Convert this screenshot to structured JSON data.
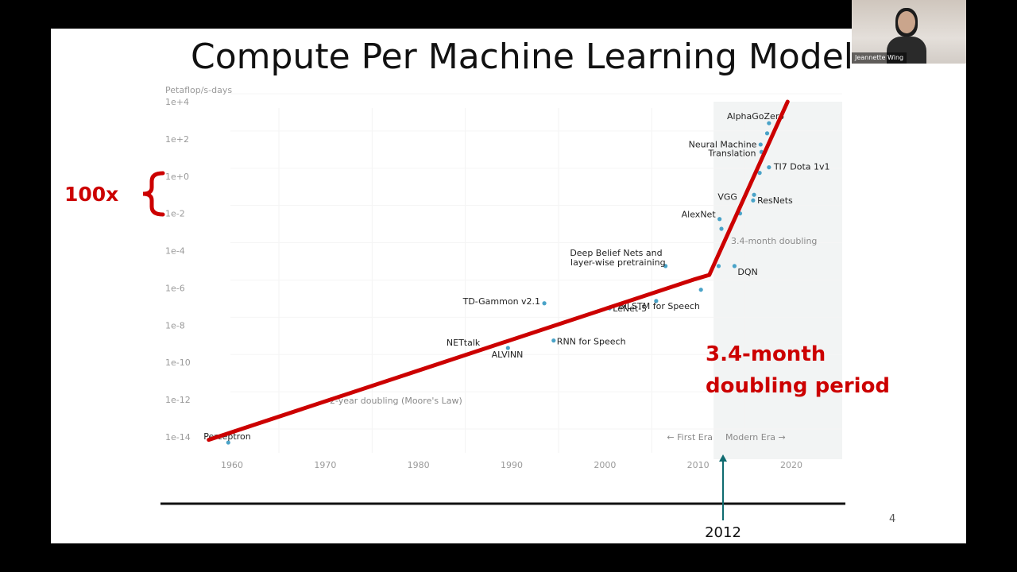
{
  "slide": {
    "title": "Compute Per Machine Learning Model",
    "page_number": "4"
  },
  "video": {
    "participant_name": "Jeannette Wing"
  },
  "annotations": {
    "hundred_x": "100x",
    "doubling_period_line1": "3.4-month",
    "doubling_period_line2": "doubling period",
    "year_2012": "2012",
    "color_red": "#cc0000",
    "color_teal": "#0f6b70"
  },
  "chart_data": {
    "type": "scatter",
    "ylabel": "Petaflop/s-days",
    "y_scale": "log",
    "ylim": [
      1e-14,
      10000.0
    ],
    "xlim": [
      1956,
      2025
    ],
    "x_ticks": [
      1960,
      1970,
      1980,
      1990,
      2000,
      2010,
      2020
    ],
    "y_ticks": [
      {
        "value": 10000.0,
        "label": "1e+4"
      },
      {
        "value": 100.0,
        "label": "1e+2"
      },
      {
        "value": 1.0,
        "label": "1e+0"
      },
      {
        "value": 0.01,
        "label": "1e-2"
      },
      {
        "value": 0.0001,
        "label": "1e-4"
      },
      {
        "value": 1e-06,
        "label": "1e-6"
      },
      {
        "value": 1e-08,
        "label": "1e-8"
      },
      {
        "value": 1e-10,
        "label": "1e-10"
      },
      {
        "value": 1e-12,
        "label": "1e-12"
      },
      {
        "value": 1e-14,
        "label": "1e-14"
      }
    ],
    "grid": true,
    "point_color": "#4aa3c8",
    "points": [
      {
        "x": 1959.6,
        "y": 5e-15
      },
      {
        "x": 1989.6,
        "y": 6e-10
      },
      {
        "x": 1994.5,
        "y": 1.5e-09
      },
      {
        "x": 1993.5,
        "y": 1.5e-07
      },
      {
        "x": 2005.5,
        "y": 2e-07
      },
      {
        "x": 2000.5,
        "y": 8e-08
      },
      {
        "x": 2006.5,
        "y": 1.5e-05
      },
      {
        "x": 2010.3,
        "y": 8e-07
      },
      {
        "x": 2012.2,
        "y": 1.5e-05
      },
      {
        "x": 2013.9,
        "y": 1.5e-05
      },
      {
        "x": 2012.3,
        "y": 0.005
      },
      {
        "x": 2012.5,
        "y": 0.0015
      },
      {
        "x": 2014.5,
        "y": 0.01
      },
      {
        "x": 2015.9,
        "y": 0.05
      },
      {
        "x": 2016.0,
        "y": 0.1
      },
      {
        "x": 2016.6,
        "y": 1.5
      },
      {
        "x": 2017.6,
        "y": 3
      },
      {
        "x": 2016.8,
        "y": 20
      },
      {
        "x": 2016.7,
        "y": 50
      },
      {
        "x": 2017.4,
        "y": 200
      },
      {
        "x": 2017.6,
        "y": 700
      }
    ],
    "point_labels": [
      {
        "text": "Perceptron",
        "x": 1959.6,
        "y": 5e-15
      },
      {
        "text": "NETtalk",
        "x": 1989.6,
        "y": 6e-10
      },
      {
        "text": "ALVINN",
        "x": 1989.6,
        "y": 6e-10
      },
      {
        "text": "RNN for Speech",
        "x": 1994.5,
        "y": 1.5e-09
      },
      {
        "text": "TD-Gammon v2.1",
        "x": 1993.5,
        "y": 1.5e-07
      },
      {
        "text": "BiLSTM for Speech",
        "x": 2005.5,
        "y": 2e-07
      },
      {
        "text": "LeNet-5",
        "x": 2000.5,
        "y": 8e-08
      },
      {
        "text": "Deep Belief Nets and",
        "x": 2006.5,
        "y": 1.5e-05
      },
      {
        "text": "layer-wise pretraining",
        "x": 2006.5,
        "y": 1.5e-05
      },
      {
        "text": "DQN",
        "x": 2013.9,
        "y": 1.5e-05
      },
      {
        "text": "AlexNet",
        "x": 2012.3,
        "y": 0.005
      },
      {
        "text": "VGG",
        "x": 2015.9,
        "y": 0.05
      },
      {
        "text": "ResNets",
        "x": 2016.0,
        "y": 0.1
      },
      {
        "text": "TI7 Dota 1v1",
        "x": 2017.6,
        "y": 3
      },
      {
        "text": "Neural Machine",
        "x": 2016.8,
        "y": 20
      },
      {
        "text": "Translation",
        "x": 2016.8,
        "y": 20
      },
      {
        "text": "AlphaGoZero",
        "x": 2017.6,
        "y": 700
      }
    ],
    "annotations": [
      {
        "text": "2-year doubling (Moore's Law)"
      },
      {
        "text": "3.4-month doubling"
      },
      {
        "text": "← First Era"
      },
      {
        "text": "Modern Era →"
      }
    ],
    "modern_era_start": 2012,
    "trend_line": {
      "color": "#cc0000",
      "points": [
        {
          "x": 1957.5,
          "y": 7e-15
        },
        {
          "x": 2009.7,
          "y": 3e-06
        },
        {
          "x": 2011.2,
          "y": 5e-06
        },
        {
          "x": 2019.6,
          "y": 10000.0
        }
      ]
    }
  }
}
